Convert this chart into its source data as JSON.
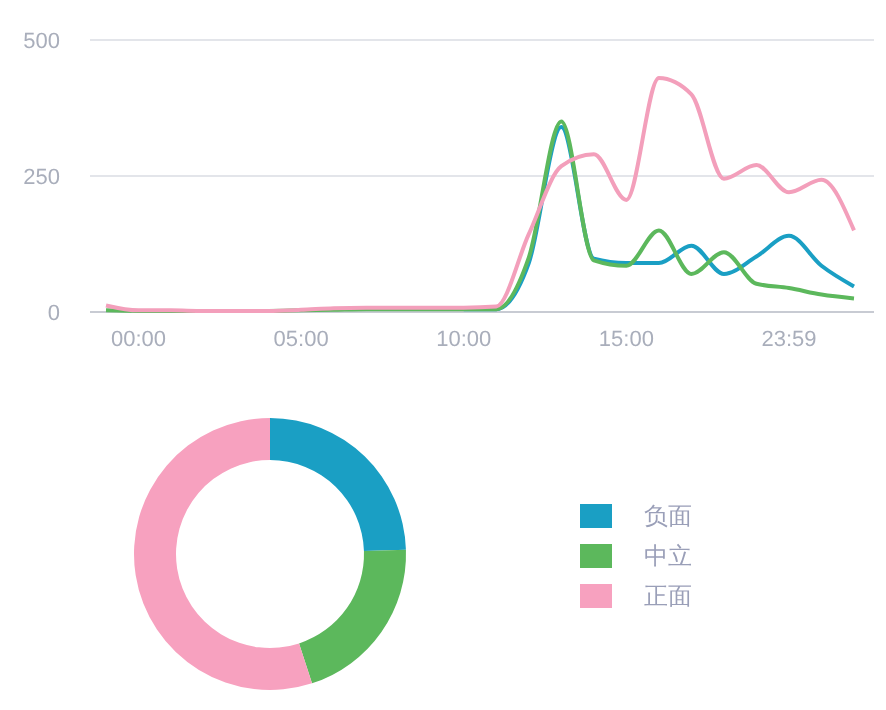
{
  "chart_data": [
    {
      "type": "line",
      "categories": [
        null,
        "00:00",
        null,
        null,
        null,
        null,
        "05:00",
        null,
        null,
        null,
        null,
        "10:00",
        null,
        null,
        null,
        null,
        "15:00",
        null,
        null,
        null,
        null,
        "23:59",
        null,
        null
      ],
      "series": [
        {
          "color": "#1a9fc4",
          "values": [
            null,
            null,
            null,
            null,
            null,
            null,
            null,
            null,
            null,
            null,
            null,
            5,
            5,
            90,
            340,
            98,
            90,
            90,
            122,
            70,
            102,
            140,
            85,
            47
          ]
        },
        {
          "color": "#5cb85c",
          "values": [
            3,
            2,
            2,
            2,
            2,
            2,
            3,
            4,
            5,
            5,
            5,
            5,
            5,
            100,
            350,
            95,
            85,
            150,
            70,
            110,
            52,
            44,
            32,
            25
          ]
        },
        {
          "color": "#f39fbb",
          "values": [
            12,
            3,
            3,
            2,
            2,
            2,
            4,
            7,
            8,
            8,
            8,
            8,
            10,
            143,
            268,
            290,
            206,
            430,
            400,
            245,
            270,
            220,
            243,
            150
          ]
        }
      ],
      "ylim": [
        0,
        500
      ],
      "yticks": [
        0,
        250,
        500
      ],
      "grid": "y",
      "marker": "none",
      "line_style": "solid"
    },
    {
      "type": "donut",
      "categories": [
        "负面",
        "中立",
        "正面"
      ],
      "values": [
        24.5,
        20.5,
        55
      ],
      "colors": [
        "#1a9fc4",
        "#5cb85c",
        "#f7a1bf"
      ],
      "legend": "right"
    }
  ]
}
